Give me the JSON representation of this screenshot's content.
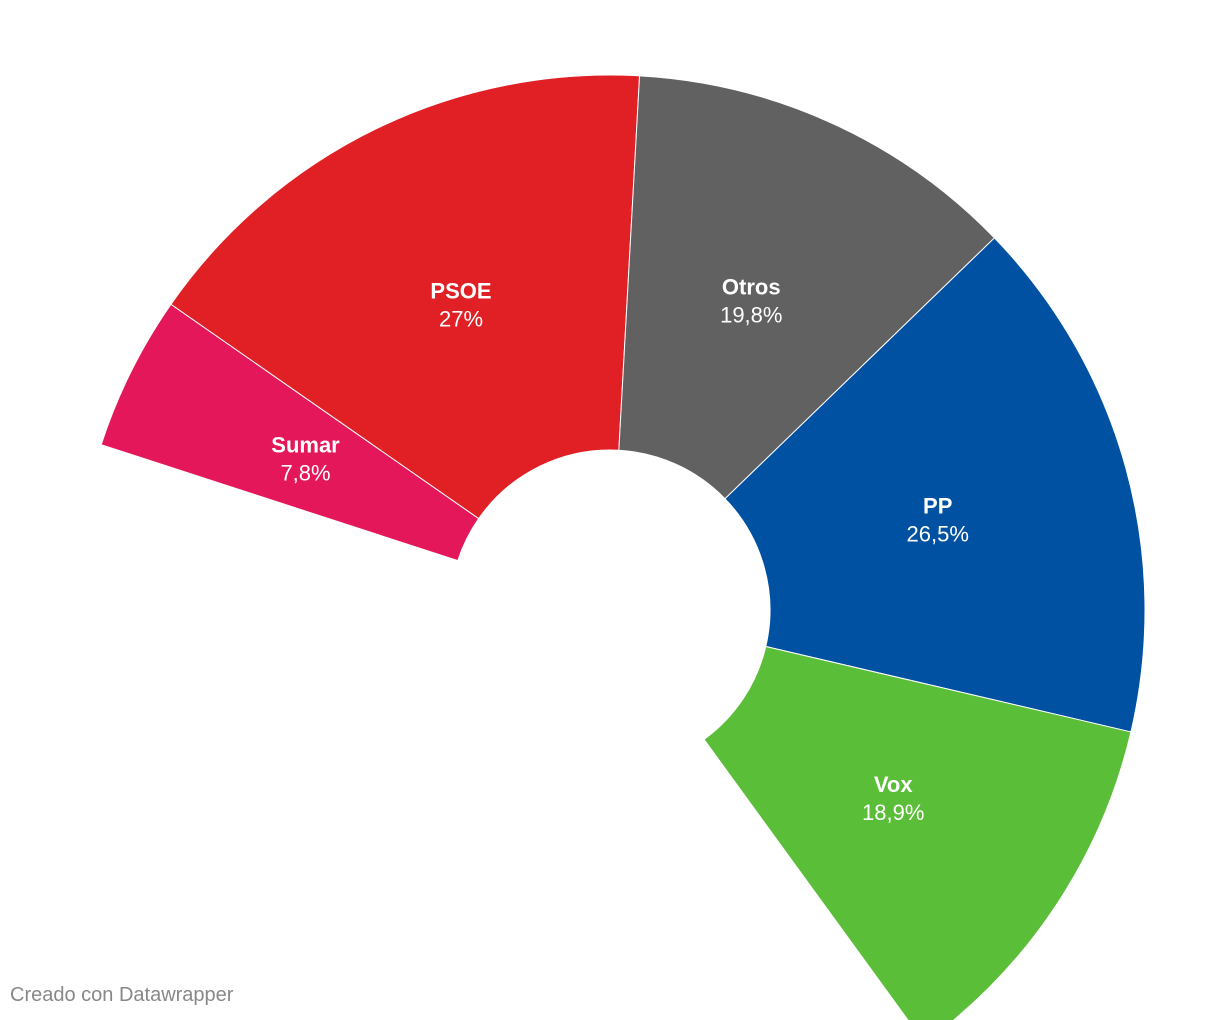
{
  "chart_data": {
    "type": "pie",
    "variant": "semicircle-donut",
    "title": "",
    "slices": [
      {
        "name": "Sumar",
        "value": 7.8,
        "label": "7,8%",
        "color": "#e3175a"
      },
      {
        "name": "PSOE",
        "value": 27,
        "label": "27%",
        "color": "#e02024"
      },
      {
        "name": "Otros",
        "value": 19.8,
        "label": "19,8%",
        "color": "#616161"
      },
      {
        "name": "PP",
        "value": 26.5,
        "label": "26,5%",
        "color": "#0051a2"
      },
      {
        "name": "Vox",
        "value": 18.9,
        "label": "18,9%",
        "color": "#5bbe38"
      }
    ]
  },
  "footer": {
    "credit": "Creado con Datawrapper"
  }
}
